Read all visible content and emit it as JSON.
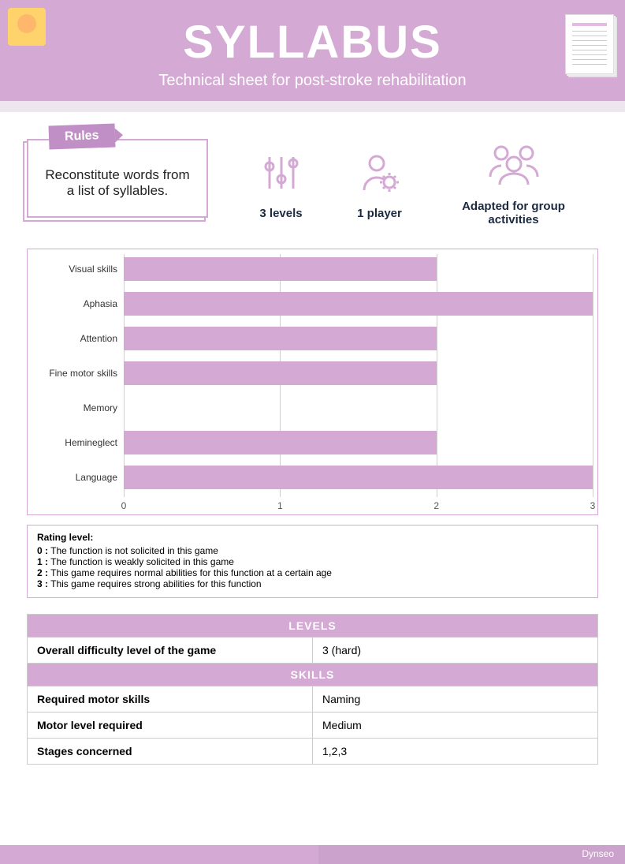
{
  "header": {
    "title": "SYLLABUS",
    "subtitle": "Technical sheet for post-stroke rehabilitation"
  },
  "rules": {
    "tab": "Rules",
    "body": "Reconstitute words from a list of syllables."
  },
  "features": [
    {
      "label": "3 levels"
    },
    {
      "label": "1 player"
    },
    {
      "label": "Adapted for group activities"
    }
  ],
  "chart": {
    "type": "bar-horizontal",
    "x_min": 0,
    "x_max": 3,
    "x_ticks": [
      0,
      1,
      2,
      3
    ],
    "bar_color": "#d4a9d4",
    "grid_color": "#cfcfcf",
    "background": "#ffffff",
    "label_fontsize": 12,
    "rows": [
      {
        "label": "Visual skills",
        "value": 2
      },
      {
        "label": "Aphasia",
        "value": 3
      },
      {
        "label": "Attention",
        "value": 2
      },
      {
        "label": "Fine motor skills",
        "value": 2
      },
      {
        "label": "Memory",
        "value": 0
      },
      {
        "label": "Hemineglect",
        "value": 2
      },
      {
        "label": "Language",
        "value": 3
      }
    ]
  },
  "legend": {
    "title": "Rating level:",
    "lines": [
      {
        "key": "0 :",
        "text": " The function is not solicited in this game"
      },
      {
        "key": "1 :",
        "text": " The function is weakly solicited in this game"
      },
      {
        "key": "2 :",
        "text": " This game requires normal abilities for this function at a certain age"
      },
      {
        "key": "3 :",
        "text": " This game requires strong abilities for this function"
      }
    ]
  },
  "table": {
    "sections": [
      {
        "header": "LEVELS",
        "rows": [
          {
            "k": "Overall difficulty level of the game",
            "v": "3 (hard)"
          }
        ]
      },
      {
        "header": "SKILLS",
        "rows": [
          {
            "k": "Required motor skills",
            "v": "Naming"
          },
          {
            "k": "Motor level required",
            "v": "Medium"
          },
          {
            "k": "Stages concerned",
            "v": "1,2,3"
          }
        ]
      }
    ]
  },
  "footer": {
    "brand": "Dynseo"
  },
  "colors": {
    "primary": "#d4a9d4",
    "primary_dark": "#c08fc5",
    "band": "#eee6ee",
    "text_dark": "#1b2a3f"
  }
}
